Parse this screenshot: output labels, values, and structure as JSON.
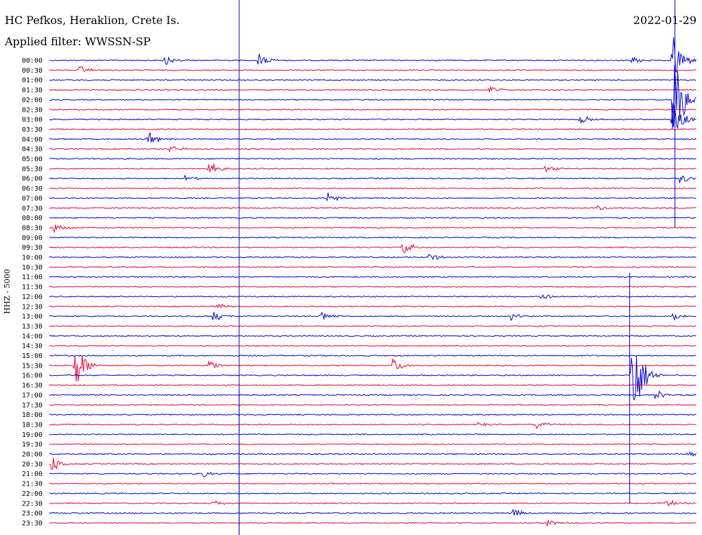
{
  "header": {
    "station": "HC Pefkos, Heraklion, Crete Is.",
    "filter": "Applied filter: WWSSN-SP",
    "date": "2022-01-29"
  },
  "chart_data": {
    "type": "line",
    "ylabel": "HHZ - 5000",
    "row_labels": [
      "00:00",
      "00:30",
      "01:00",
      "01:30",
      "02:00",
      "02:30",
      "03:00",
      "03:30",
      "04:00",
      "04:30",
      "05:00",
      "05:30",
      "06:00",
      "06:30",
      "07:00",
      "07:30",
      "08:00",
      "08:30",
      "09:00",
      "09:30",
      "10:00",
      "10:30",
      "11:00",
      "11:30",
      "12:00",
      "12:30",
      "13:00",
      "13:30",
      "14:00",
      "14:30",
      "15:00",
      "15:30",
      "16:00",
      "16:30",
      "17:00",
      "17:30",
      "18:00",
      "18:30",
      "19:00",
      "19:30",
      "20:00",
      "20:30",
      "21:00",
      "21:30",
      "22:00",
      "22:30",
      "23:00",
      "23:30"
    ],
    "row_minutes": 30,
    "colors": {
      "even": "#0000cc",
      "odd": "#e8003c"
    },
    "events": [
      {
        "row": 0,
        "minute": 5.3,
        "amp": 8
      },
      {
        "row": 0,
        "minute": 9.7,
        "amp": 11
      },
      {
        "row": 0,
        "minute": 27.0,
        "amp": 6
      },
      {
        "row": 0,
        "minute": 28.9,
        "amp": 40
      },
      {
        "row": 1,
        "minute": 1.4,
        "amp": 7
      },
      {
        "row": 3,
        "minute": 20.4,
        "amp": 7
      },
      {
        "row": 4,
        "minute": 28.9,
        "amp": 90
      },
      {
        "row": 6,
        "minute": 24.5,
        "amp": 10
      },
      {
        "row": 6,
        "minute": 28.9,
        "amp": 30
      },
      {
        "row": 8,
        "minute": 4.6,
        "amp": 14
      },
      {
        "row": 9,
        "minute": 5.6,
        "amp": 7
      },
      {
        "row": 11,
        "minute": 7.4,
        "amp": 12
      },
      {
        "row": 11,
        "minute": 23.0,
        "amp": 5
      },
      {
        "row": 12,
        "minute": 6.3,
        "amp": 5
      },
      {
        "row": 12,
        "minute": 29.2,
        "amp": 8
      },
      {
        "row": 14,
        "minute": 12.9,
        "amp": 9
      },
      {
        "row": 15,
        "minute": 25.4,
        "amp": 5
      },
      {
        "row": 17,
        "minute": 0.2,
        "amp": 7
      },
      {
        "row": 19,
        "minute": 16.4,
        "amp": 12
      },
      {
        "row": 20,
        "minute": 17.5,
        "amp": 8
      },
      {
        "row": 24,
        "minute": 22.8,
        "amp": 7
      },
      {
        "row": 25,
        "minute": 7.8,
        "amp": 5
      },
      {
        "row": 26,
        "minute": 7.6,
        "amp": 9
      },
      {
        "row": 26,
        "minute": 12.6,
        "amp": 8
      },
      {
        "row": 26,
        "minute": 21.4,
        "amp": 6
      },
      {
        "row": 26,
        "minute": 28.9,
        "amp": 8
      },
      {
        "row": 31,
        "minute": 1.2,
        "amp": 37
      },
      {
        "row": 31,
        "minute": 7.4,
        "amp": 8
      },
      {
        "row": 31,
        "minute": 15.9,
        "amp": 12
      },
      {
        "row": 32,
        "minute": 27.0,
        "amp": 90
      },
      {
        "row": 34,
        "minute": 28.1,
        "amp": 8
      },
      {
        "row": 37,
        "minute": 19.9,
        "amp": 6
      },
      {
        "row": 37,
        "minute": 22.6,
        "amp": 6
      },
      {
        "row": 40,
        "minute": 29.6,
        "amp": 6
      },
      {
        "row": 41,
        "minute": 0.1,
        "amp": 14
      },
      {
        "row": 42,
        "minute": 7.1,
        "amp": 6
      },
      {
        "row": 45,
        "minute": 7.6,
        "amp": 7
      },
      {
        "row": 45,
        "minute": 28.6,
        "amp": 7
      },
      {
        "row": 46,
        "minute": 21.5,
        "amp": 6
      },
      {
        "row": 47,
        "minute": 23.1,
        "amp": 6
      }
    ],
    "vertical_markers": [
      {
        "row_start": 0,
        "row_end": 48,
        "minute": 8.8,
        "color": "#0000cc"
      },
      {
        "row_start": 34,
        "row_end": 48,
        "minute": 8.8,
        "color": "#0000cc"
      },
      {
        "row_start": 22,
        "row_end": 45,
        "minute": 26.9,
        "color": "#0000cc"
      },
      {
        "row_start": 0,
        "row_end": 17,
        "minute": 29.0,
        "color": "#0000cc"
      }
    ]
  }
}
